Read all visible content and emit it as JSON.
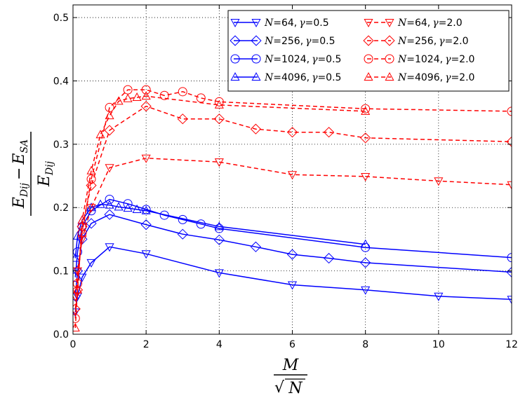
{
  "chart_data": {
    "type": "line",
    "title": "",
    "xlabel": "M/√N",
    "xlabel_parts": {
      "numerator": "M",
      "denominator": "N",
      "radical": "√"
    },
    "ylabel": "(E_Dij − E_SA)/E_Dij",
    "ylabel_parts": {
      "num_a": "E",
      "num_a_sub": "Dij",
      "minus": "−",
      "num_b": "E",
      "num_b_sub": "SA",
      "den": "E",
      "den_sub": "Dij"
    },
    "xlim": [
      0,
      12
    ],
    "ylim": [
      0,
      0.52
    ],
    "x_ticks": [
      {
        "v": 0,
        "label": "0"
      },
      {
        "v": 2,
        "label": "2"
      },
      {
        "v": 4,
        "label": "4"
      },
      {
        "v": 6,
        "label": "6"
      },
      {
        "v": 8,
        "label": "8"
      },
      {
        "v": 10,
        "label": "10"
      },
      {
        "v": 12,
        "label": "12"
      }
    ],
    "y_ticks": [
      {
        "v": 0,
        "label": "0.0"
      },
      {
        "v": 0.1,
        "label": "0.1"
      },
      {
        "v": 0.2,
        "label": "0.2"
      },
      {
        "v": 0.3,
        "label": "0.3"
      },
      {
        "v": 0.4,
        "label": "0.4"
      },
      {
        "v": 0.5,
        "label": "0.5"
      }
    ],
    "grid": true,
    "legend_position": "top-right",
    "colors": {
      "blue": "#0000ff",
      "red": "#ff0000"
    },
    "series": [
      {
        "name": "N=64, γ=0.5",
        "N": "64",
        "gamma": "0.5",
        "color": "#0000ff",
        "dash": "solid",
        "marker": "triangle-down",
        "x": [
          0.0625,
          0.125,
          0.25,
          0.5,
          1,
          2,
          4,
          6,
          8,
          10,
          12
        ],
        "y": [
          0.035,
          0.06,
          0.09,
          0.113,
          0.138,
          0.127,
          0.097,
          0.078,
          0.07,
          0.06,
          0.055
        ]
      },
      {
        "name": "N=256, γ=0.5",
        "N": "256",
        "gamma": "0.5",
        "color": "#0000ff",
        "dash": "solid",
        "marker": "diamond",
        "x": [
          0.0625,
          0.125,
          0.25,
          0.5,
          1,
          2,
          3,
          4,
          5,
          6,
          7,
          8,
          12
        ],
        "y": [
          0.06,
          0.1,
          0.15,
          0.175,
          0.189,
          0.173,
          0.158,
          0.149,
          0.138,
          0.126,
          0.12,
          0.113,
          0.098
        ]
      },
      {
        "name": "N=1024, γ=0.5",
        "N": "1024",
        "gamma": "0.5",
        "color": "#0000ff",
        "dash": "solid",
        "marker": "circle",
        "x": [
          0.0625,
          0.125,
          0.25,
          0.5,
          1,
          1.5,
          2,
          2.5,
          3,
          3.5,
          4,
          8,
          12
        ],
        "y": [
          0.09,
          0.13,
          0.17,
          0.195,
          0.213,
          0.206,
          0.197,
          0.188,
          0.181,
          0.174,
          0.167,
          0.137,
          0.121
        ]
      },
      {
        "name": "N=4096, γ=0.5",
        "N": "4096",
        "gamma": "0.5",
        "color": "#0000ff",
        "dash": "solid",
        "marker": "triangle-up",
        "x": [
          0.0625,
          0.125,
          0.25,
          0.5,
          0.75,
          1,
          1.25,
          1.5,
          1.75,
          2,
          4,
          8
        ],
        "y": [
          0.12,
          0.155,
          0.18,
          0.2,
          0.205,
          0.204,
          0.201,
          0.199,
          0.197,
          0.195,
          0.17,
          0.142
        ]
      },
      {
        "name": "N=64, γ=2.0",
        "N": "64",
        "gamma": "2.0",
        "color": "#ff0000",
        "dash": "dashed",
        "marker": "triangle-down",
        "x": [
          0.0625,
          0.125,
          0.25,
          0.5,
          1,
          2,
          4,
          6,
          8,
          10,
          12
        ],
        "y": [
          0.06,
          0.1,
          0.15,
          0.2,
          0.263,
          0.278,
          0.272,
          0.252,
          0.249,
          0.242,
          0.236
        ]
      },
      {
        "name": "N=256, γ=2.0",
        "N": "256",
        "gamma": "2.0",
        "color": "#ff0000",
        "dash": "dashed",
        "marker": "diamond",
        "x": [
          0.0625,
          0.125,
          0.25,
          0.5,
          1,
          2,
          3,
          4,
          5,
          6,
          7,
          8,
          12
        ],
        "y": [
          0.04,
          0.07,
          0.17,
          0.235,
          0.322,
          0.36,
          0.34,
          0.34,
          0.324,
          0.319,
          0.319,
          0.31,
          0.304
        ]
      },
      {
        "name": "N=1024, γ=2.0",
        "N": "1024",
        "gamma": "2.0",
        "color": "#ff0000",
        "dash": "dashed",
        "marker": "circle",
        "x": [
          0.0625,
          0.125,
          0.25,
          0.5,
          1,
          1.5,
          2,
          2.5,
          3,
          3.5,
          4,
          8,
          12
        ],
        "y": [
          0.025,
          0.08,
          0.16,
          0.245,
          0.358,
          0.386,
          0.386,
          0.377,
          0.383,
          0.373,
          0.367,
          0.356,
          0.352
        ]
      },
      {
        "name": "N=4096, γ=2.0",
        "N": "4096",
        "gamma": "2.0",
        "color": "#ff0000",
        "dash": "dashed",
        "marker": "triangle-up",
        "x": [
          0.0625,
          0.125,
          0.25,
          0.5,
          0.75,
          1,
          1.25,
          1.5,
          1.75,
          2,
          4,
          8
        ],
        "y": [
          0.01,
          0.07,
          0.18,
          0.258,
          0.315,
          0.345,
          0.368,
          0.372,
          0.374,
          0.376,
          0.362,
          0.352
        ]
      }
    ]
  }
}
